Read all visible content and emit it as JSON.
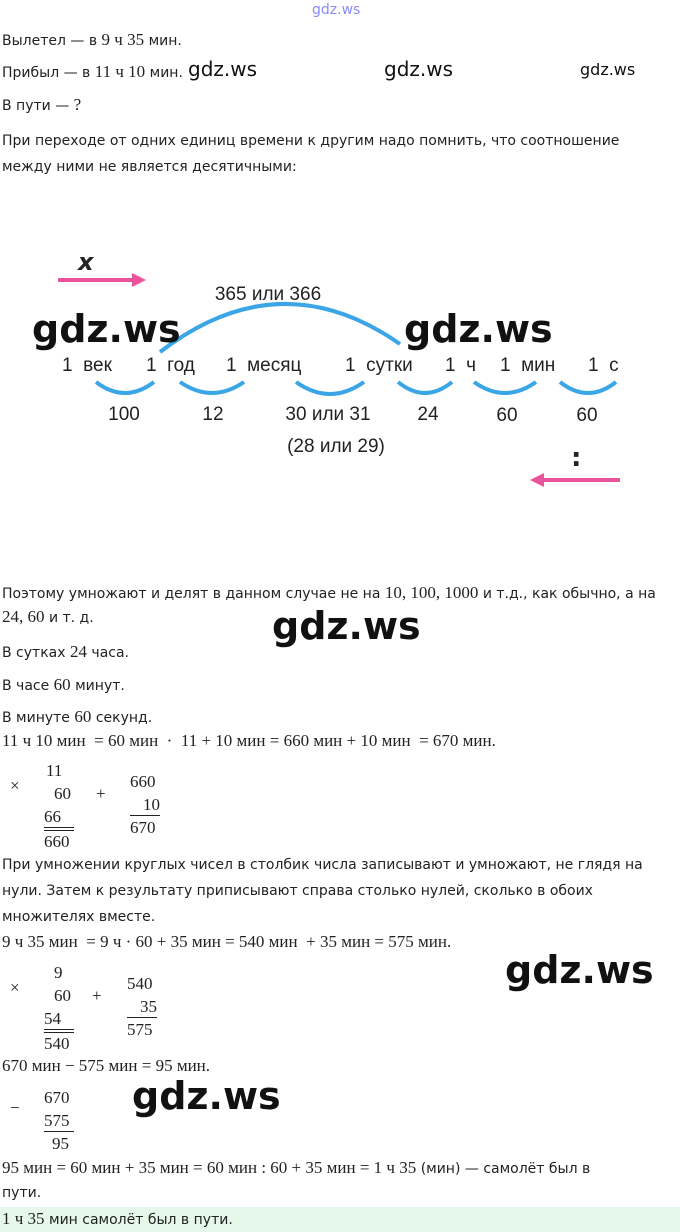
{
  "watermark": {
    "site": "gdz.ws"
  },
  "given": {
    "departed": {
      "label": "Вылетел — в",
      "time": "9 ч 35",
      "unit": "мин."
    },
    "arrived": {
      "label": "Прибыл — в",
      "time": "11 ч 10",
      "unit": "мин."
    },
    "in_flight": {
      "label": "В пути —",
      "value": "?"
    }
  },
  "note": {
    "line1": "При переходе от одних единиц времени к другим надо помнить, что соотношение",
    "line2": "между ними не является десятичными:"
  },
  "diagram": {
    "forward_symbol": "x",
    "backward_symbol": ":",
    "top_label": "365 или 366",
    "units": [
      "1  век",
      "1  год",
      "1  месяц",
      "1  сутки",
      "1  ч",
      "1  мин",
      "1  с"
    ],
    "ratios": [
      "100",
      "12",
      "30 или 31",
      "24",
      "60",
      "60"
    ],
    "ratio_note": "(28 или 29)"
  },
  "explanation": {
    "line1_a": "Поэтому умножают и делят в данном случае не на",
    "line1_nums": "10, 100, 1000",
    "line1_b": "и т.д., как обычно, а на",
    "line2_nums": "24, 60",
    "line2_b": "и т. д.",
    "day_a": "В сутках",
    "day_n": "24",
    "day_b": "часа.",
    "hour_a": "В часе",
    "hour_n": "60",
    "hour_b": "минут.",
    "min_a": "В минуте",
    "min_n": "60",
    "min_b": "секунд."
  },
  "calc1": {
    "equation": "11 ч 10 мин  = 60 мин  ·  11 + 10 мин = 660 мин + 10 мин  = 670 мин.",
    "mult": {
      "sign": "×",
      "a": "11",
      "b": "60",
      "p1": "66",
      "res": "660"
    },
    "add": {
      "sign": "+",
      "a": "660",
      "b": "10",
      "res": "670"
    }
  },
  "rule": {
    "line1": "При умножении круглых чисел в столбик числа записывают и умножают, не глядя на",
    "line2": "нули. Затем к результату приписывают справа столько нулей, сколько в обоих",
    "line3": "множителях вместе."
  },
  "calc2": {
    "equation": "9 ч 35 мин  = 9 ч · 60 + 35 мин = 540 мин  + 35 мин = 575 мин.",
    "mult": {
      "sign": "×",
      "a": "9",
      "b": "60",
      "p1": "54",
      "res": "540"
    },
    "add": {
      "sign": "+",
      "a": "540",
      "b": "35",
      "res": "575"
    }
  },
  "calc3": {
    "equation": "670 мин − 575 мин = 95 мин.",
    "sub": {
      "sign": "−",
      "a": "670",
      "b": "575",
      "res": "95"
    }
  },
  "conversion": {
    "equation": "95 мин = 60 мин + 35 мин = 60 мин : 60 + 35 мин = 1 ч 35",
    "tail": "(мин) — самолёт был в",
    "line2": "пути."
  },
  "answer": {
    "value": "1 ч 35",
    "text": "мин самолёт был в пути."
  },
  "colors": {
    "pink": "#e8539a",
    "blue": "#3aa6e6",
    "answer_bg": "#e6f8ea"
  }
}
